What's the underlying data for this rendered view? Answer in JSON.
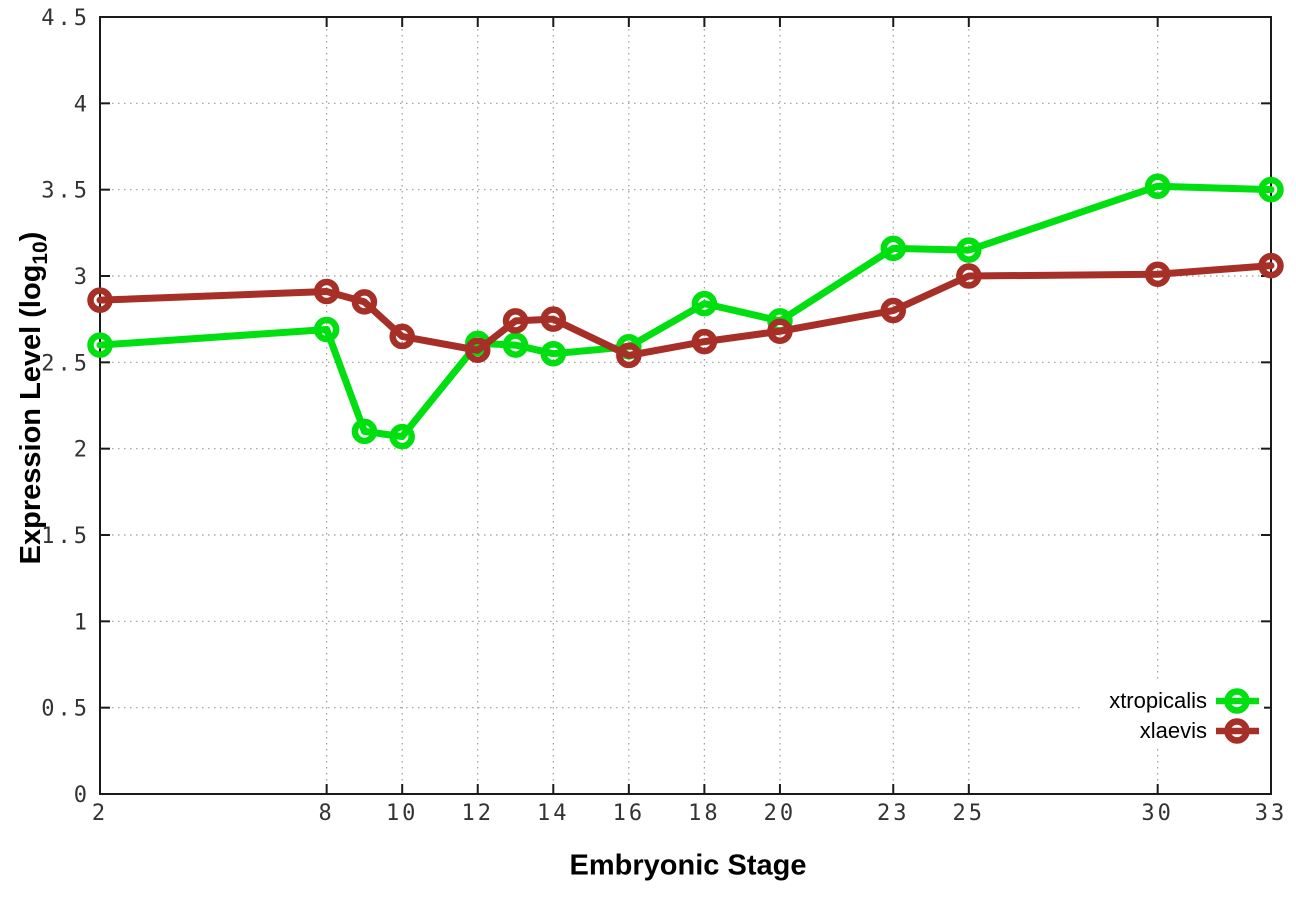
{
  "chart_data": {
    "type": "line",
    "title": "",
    "xlabel": "Embryonic Stage",
    "ylabel": {
      "pre": "Expression Level (log",
      "sub": "10",
      "post": ")"
    },
    "x": [
      2,
      8,
      9,
      10,
      12,
      13,
      14,
      16,
      18,
      20,
      23,
      25,
      30,
      33
    ],
    "series": [
      {
        "name": "xtropicalis",
        "color": "#00df10",
        "values": [
          2.6,
          2.69,
          2.1,
          2.07,
          2.61,
          2.6,
          2.55,
          2.59,
          2.84,
          2.74,
          3.16,
          3.15,
          3.52,
          3.5
        ]
      },
      {
        "name": "xlaevis",
        "color": "#a62f28",
        "values": [
          2.86,
          2.91,
          2.85,
          2.65,
          2.57,
          2.74,
          2.75,
          2.54,
          2.62,
          2.68,
          2.8,
          3.0,
          3.01,
          3.06
        ]
      }
    ],
    "xlim": [
      2,
      33
    ],
    "ylim": [
      0,
      4.5
    ],
    "x_ticks": [
      2,
      8,
      10,
      12,
      14,
      16,
      18,
      20,
      23,
      25,
      30,
      33
    ],
    "x_tick_labels": [
      "2",
      "8",
      "10",
      "12",
      "14",
      "16",
      "18",
      "20",
      "23",
      "25",
      "30",
      "33"
    ],
    "y_ticks": [
      0,
      0.5,
      1,
      1.5,
      2,
      2.5,
      3,
      3.5,
      4,
      4.5
    ],
    "y_tick_labels": [
      "0",
      "0.5",
      "1",
      "1.5",
      "2",
      "2.5",
      "3",
      "3.5",
      "4",
      "4.5"
    ],
    "grid": true,
    "legend_position": "bottom-right",
    "axis_color": "#1a1a1a",
    "grid_color": "#9a9a9a",
    "tick_label_color": "#333333"
  }
}
